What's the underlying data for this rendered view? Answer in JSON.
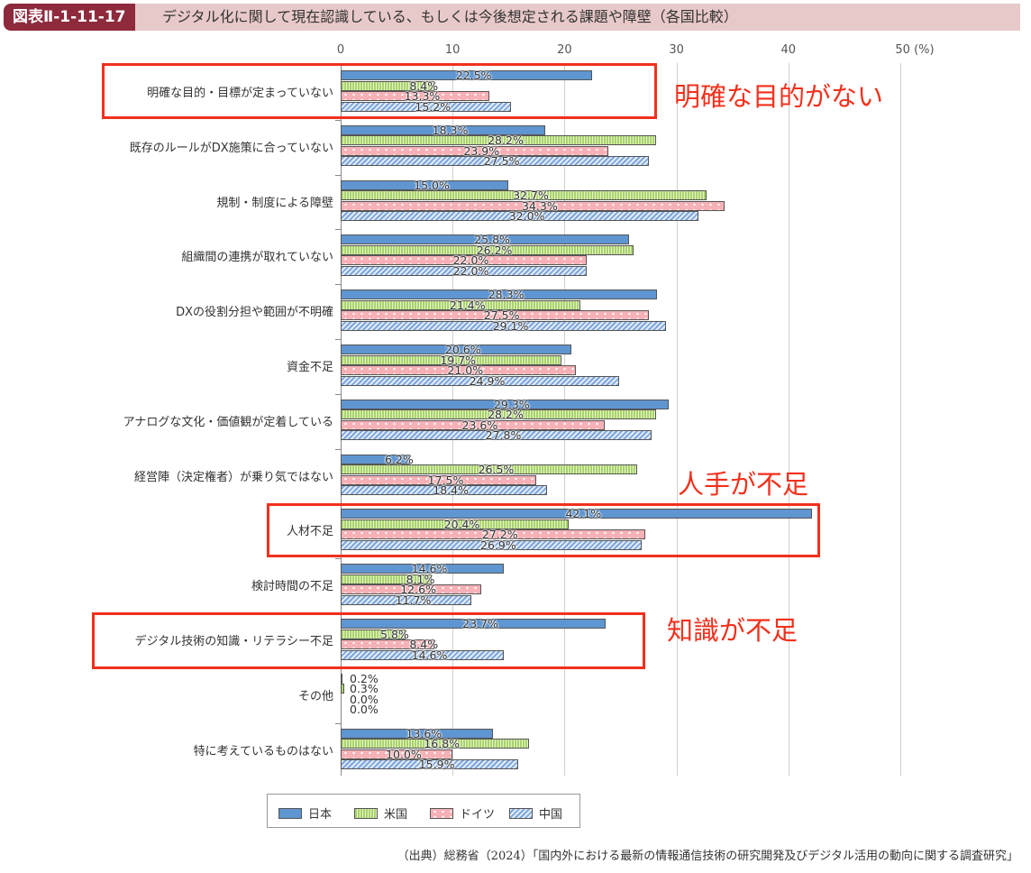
{
  "header": {
    "figure_number": "図表Ⅱ-1-11-17",
    "title": "デジタル化に関して現在認識している、もしくは今後想定される課題や障壁（各国比較）"
  },
  "axis": {
    "ticks": [
      "0",
      "10",
      "20",
      "30",
      "40",
      "50 (%)"
    ]
  },
  "annotations": {
    "box1_label": "明確な目的がない",
    "box2_label": "人手が不足",
    "box3_label": "知識が不足"
  },
  "legend": {
    "jp": "日本",
    "us": "米国",
    "de": "ドイツ",
    "cn": "中国"
  },
  "source": "（出典）総務省（2024）「国内外における最新の情報通信技術の研究開発及びデジタル活用の動向に関する調査研究」",
  "colors": {
    "jp": "#5f95d0",
    "us": "#a9d36a",
    "de": "#f6b1b6",
    "cn": "#7ea6dc",
    "highlight": "#f2301c",
    "header_badge": "#8e2a3c",
    "header_bg": "#e8c9c9"
  },
  "chart_data": {
    "type": "bar",
    "orientation": "horizontal",
    "title": "デジタル化に関して現在認識している、もしくは今後想定される課題や障壁（各国比較）",
    "xlabel": "(%)",
    "ylabel": "",
    "xlim": [
      0,
      50
    ],
    "xticks": [
      0,
      10,
      20,
      30,
      40,
      50
    ],
    "grid": true,
    "legend_position": "bottom",
    "categories": [
      "明確な目的・目標が定まっていない",
      "既存のルールがDX施策に合っていない",
      "規制・制度による障壁",
      "組織間の連携が取れていない",
      "DXの役割分担や範囲が不明確",
      "資金不足",
      "アナログな文化・価値観が定着している",
      "経営陣（決定権者）が乗り気ではない",
      "人材不足",
      "検討時間の不足",
      "デジタル技術の知識・リテラシー不足",
      "その他",
      "特に考えているものはない"
    ],
    "series": [
      {
        "name": "日本",
        "values": [
          22.5,
          18.3,
          15.0,
          25.8,
          28.3,
          20.6,
          29.3,
          6.2,
          42.1,
          14.6,
          23.7,
          0.2,
          13.6
        ]
      },
      {
        "name": "米国",
        "values": [
          8.4,
          28.2,
          32.7,
          26.2,
          21.4,
          19.7,
          28.2,
          26.5,
          20.4,
          8.1,
          5.8,
          0.3,
          16.8
        ]
      },
      {
        "name": "ドイツ",
        "values": [
          13.3,
          23.9,
          34.3,
          22.0,
          27.5,
          21.0,
          23.6,
          17.5,
          27.2,
          12.6,
          8.4,
          0.0,
          10.0
        ]
      },
      {
        "name": "中国",
        "values": [
          15.2,
          27.5,
          32.0,
          22.0,
          29.1,
          24.9,
          27.8,
          18.4,
          26.9,
          11.7,
          14.6,
          0.0,
          15.9
        ]
      }
    ],
    "value_labels": [
      [
        "22.5%",
        "8.4%",
        "13.3%",
        "15.2%"
      ],
      [
        "18.3%",
        "28.2%",
        "23.9%",
        "27.5%"
      ],
      [
        "15.0%",
        "32.7%",
        "34.3%",
        "32.0%"
      ],
      [
        "25.8%",
        "26.2%",
        "22.0%",
        "22.0%"
      ],
      [
        "28.3%",
        "21.4%",
        "27.5%",
        "29.1%"
      ],
      [
        "20.6%",
        "19.7%",
        "21.0%",
        "24.9%"
      ],
      [
        "29.3%",
        "28.2%",
        "23.6%",
        "27.8%"
      ],
      [
        "6.2%",
        "26.5%",
        "17.5%",
        "18.4%"
      ],
      [
        "42.1%",
        "20.4%",
        "27.2%",
        "26.9%"
      ],
      [
        "14.6%",
        "8.1%",
        "12.6%",
        "11.7%"
      ],
      [
        "23.7%",
        "5.8%",
        "8.4%",
        "14.6%"
      ],
      [
        "0.2%",
        "0.3%",
        "0.0%",
        "0.0%"
      ],
      [
        "13.6%",
        "16.8%",
        "10.0%",
        "15.9%"
      ]
    ],
    "highlighted_categories": [
      {
        "category": "明確な目的・目標が定まっていない",
        "annotation": "明確な目的がない"
      },
      {
        "category": "人材不足",
        "annotation": "人手が不足"
      },
      {
        "category": "デジタル技術の知識・リテラシー不足",
        "annotation": "知識が不足"
      }
    ]
  }
}
